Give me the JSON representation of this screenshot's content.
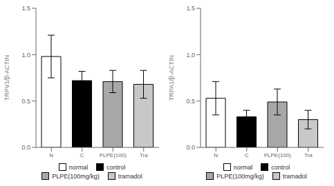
{
  "chart_data": [
    {
      "type": "bar",
      "y_label": "TRPV1/β-ACTIN",
      "categories": [
        "N",
        "C",
        "PLPE(100)",
        "Tra"
      ],
      "series": [
        {
          "name": "normal",
          "color": "white",
          "values": [
            0.98,
            null,
            null,
            null
          ],
          "errors": [
            0.23,
            null,
            null,
            null
          ]
        },
        {
          "name": "control",
          "color": "black",
          "values": [
            null,
            0.72,
            null,
            null
          ],
          "errors": [
            null,
            0.1,
            null,
            null
          ]
        },
        {
          "name": "PLPE(100mg/kg)",
          "color": "#a8a8a8",
          "values": [
            null,
            null,
            0.71,
            null
          ],
          "errors": [
            null,
            null,
            0.12,
            null
          ]
        },
        {
          "name": "tramadol",
          "color": "#c8c8c8",
          "values": [
            null,
            null,
            null,
            0.68
          ],
          "errors": [
            null,
            null,
            null,
            0.15
          ]
        }
      ],
      "ylim": [
        0,
        1.5
      ],
      "yticks": [
        {
          "value": 0,
          "label": "0.0"
        },
        0.5,
        {
          "value": 1,
          "label": "1.0"
        },
        1.5
      ],
      "grid": false
    },
    {
      "type": "bar",
      "y_label": "TRPA1/β-ACTIN",
      "categories": [
        "N",
        "C",
        "PLPE(100)",
        "Tra"
      ],
      "series": [
        {
          "name": "normal",
          "color": "white",
          "values": [
            0.53,
            null,
            null,
            null
          ],
          "errors": [
            0.18,
            null,
            null,
            null
          ]
        },
        {
          "name": "control",
          "color": "black",
          "values": [
            null,
            0.33,
            null,
            null
          ],
          "errors": [
            null,
            0.07,
            null,
            null
          ]
        },
        {
          "name": "PLPE(100mg/kg)",
          "color": "#a8a8a8",
          "values": [
            null,
            null,
            0.49,
            null
          ],
          "errors": [
            null,
            null,
            0.14,
            null
          ]
        },
        {
          "name": "tramadol",
          "color": "#c8c8c8",
          "values": [
            null,
            null,
            null,
            0.3
          ],
          "errors": [
            null,
            null,
            null,
            0.1
          ]
        }
      ],
      "ylim": [
        0,
        1.5
      ],
      "yticks": [
        {
          "value": 0,
          "label": "0.0"
        },
        0.5,
        {
          "value": 1,
          "label": "1.0"
        },
        1.5
      ],
      "grid": false
    }
  ]
}
